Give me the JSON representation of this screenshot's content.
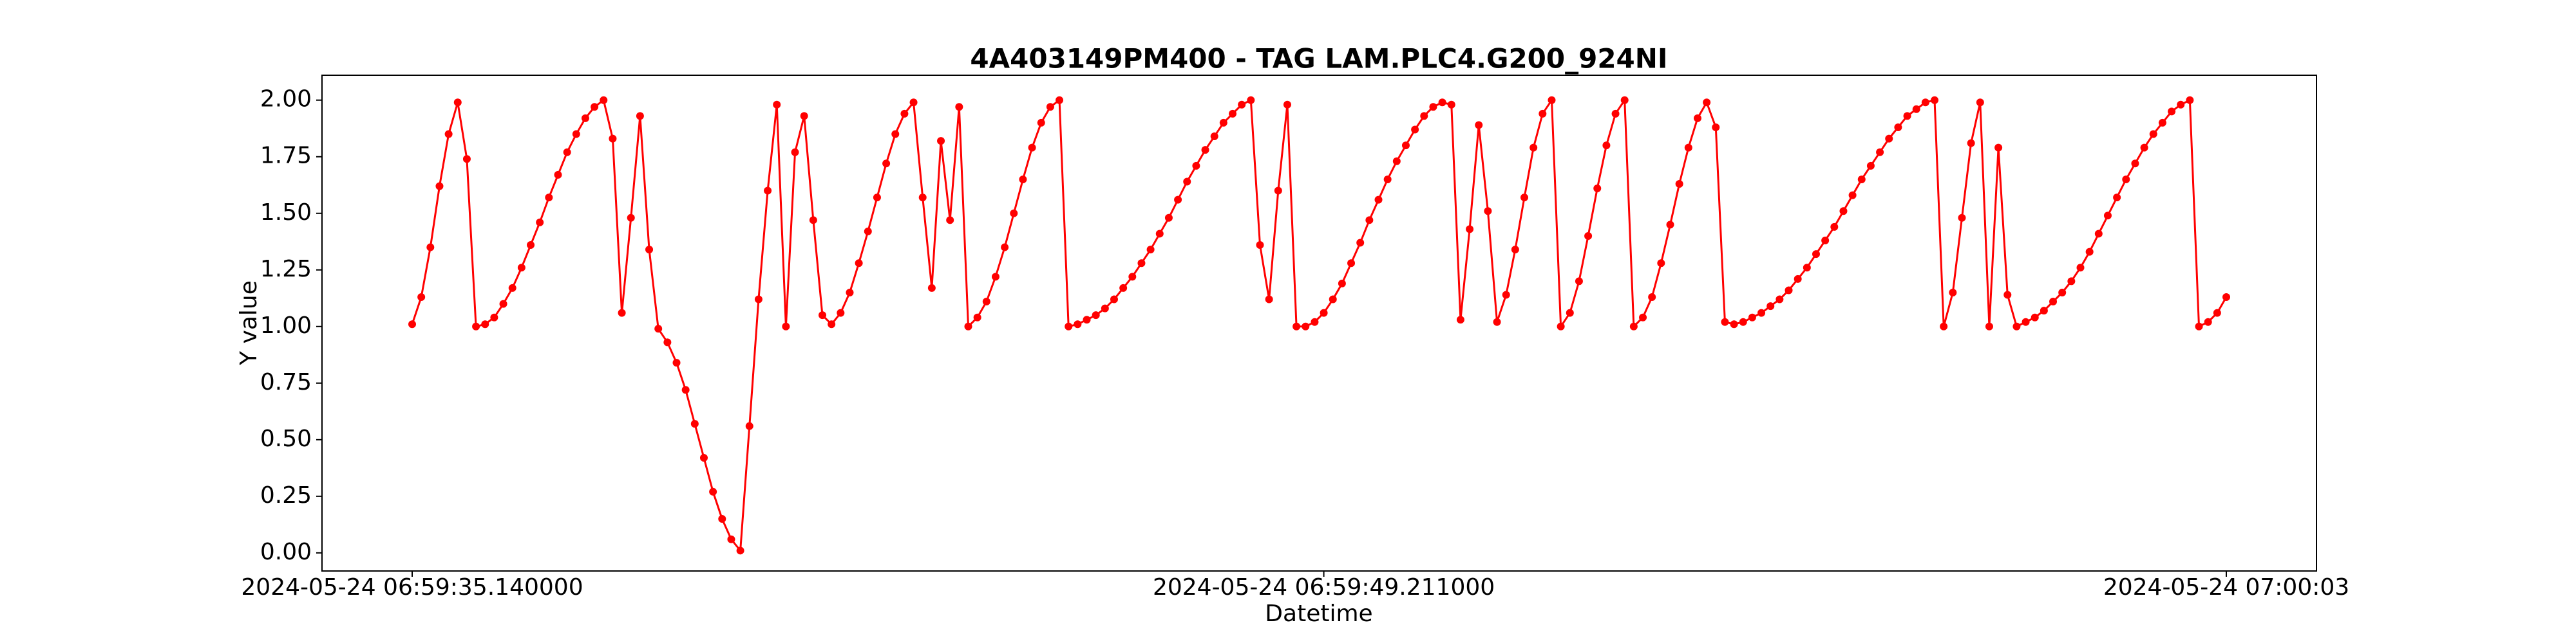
{
  "chart_data": {
    "type": "line",
    "title": "4A403149PM400 - TAG LAM.PLC4.G200_924NI",
    "xlabel": "Datetime",
    "ylabel": "Y value",
    "color": "#ff0000",
    "categories": [
      "2024-05-24 06:59:35.140000",
      null,
      null,
      null,
      null,
      null,
      null,
      null,
      null,
      null,
      null,
      null,
      null,
      null,
      null,
      null,
      null,
      null,
      null,
      null,
      null,
      null,
      null,
      null,
      null,
      null,
      null,
      null,
      null,
      null,
      null,
      null,
      null,
      null,
      null,
      null,
      null,
      null,
      null,
      null,
      null,
      null,
      null,
      null,
      null,
      null,
      null,
      null,
      null,
      null,
      null,
      null,
      null,
      null,
      null,
      null,
      null,
      null,
      null,
      null,
      null,
      null,
      null,
      null,
      null,
      null,
      null,
      null,
      null,
      null,
      null,
      null,
      null,
      null,
      null,
      null,
      null,
      null,
      null,
      null,
      null,
      null,
      null,
      null,
      null,
      null,
      null,
      null,
      null,
      null,
      null,
      null,
      null,
      null,
      null,
      null,
      null,
      null,
      null,
      null,
      "2024-05-24 06:59:49.211000",
      null,
      null,
      null,
      null,
      null,
      null,
      null,
      null,
      null,
      null,
      null,
      null,
      null,
      null,
      null,
      null,
      null,
      null,
      null,
      null,
      null,
      null,
      null,
      null,
      null,
      null,
      null,
      null,
      null,
      null,
      null,
      null,
      null,
      null,
      null,
      null,
      null,
      null,
      null,
      null,
      null,
      null,
      null,
      null,
      null,
      null,
      null,
      null,
      null,
      null,
      null,
      null,
      null,
      null,
      null,
      null,
      null,
      null,
      null,
      null,
      null,
      null,
      null,
      null,
      null,
      null,
      null,
      null,
      null,
      null,
      null,
      null,
      null,
      null,
      null,
      null,
      null,
      null,
      null,
      null,
      null,
      null,
      null,
      null,
      null,
      null,
      null,
      null,
      null,
      null,
      null,
      null,
      null,
      null,
      null,
      null,
      null,
      null,
      "2024-05-24 07:00:03"
    ],
    "values": [
      1.01,
      1.13,
      1.35,
      1.62,
      1.85,
      1.99,
      1.74,
      1.0,
      1.01,
      1.04,
      1.1,
      1.17,
      1.26,
      1.36,
      1.46,
      1.57,
      1.67,
      1.77,
      1.85,
      1.92,
      1.97,
      2.0,
      1.83,
      1.06,
      1.48,
      1.93,
      1.34,
      0.99,
      0.93,
      0.84,
      0.72,
      0.57,
      0.42,
      0.27,
      0.15,
      0.06,
      0.01,
      0.56,
      1.12,
      1.6,
      1.98,
      1.0,
      1.77,
      1.93,
      1.47,
      1.05,
      1.01,
      1.06,
      1.15,
      1.28,
      1.42,
      1.57,
      1.72,
      1.85,
      1.94,
      1.99,
      1.57,
      1.17,
      1.82,
      1.47,
      1.97,
      1.0,
      1.04,
      1.11,
      1.22,
      1.35,
      1.5,
      1.65,
      1.79,
      1.9,
      1.97,
      2.0,
      1.0,
      1.01,
      1.03,
      1.05,
      1.08,
      1.12,
      1.17,
      1.22,
      1.28,
      1.34,
      1.41,
      1.48,
      1.56,
      1.64,
      1.71,
      1.78,
      1.84,
      1.9,
      1.94,
      1.98,
      2.0,
      1.36,
      1.12,
      1.6,
      1.98,
      1.0,
      1.0,
      1.02,
      1.06,
      1.12,
      1.19,
      1.28,
      1.37,
      1.47,
      1.56,
      1.65,
      1.73,
      1.8,
      1.87,
      1.93,
      1.97,
      1.99,
      1.98,
      1.03,
      1.43,
      1.89,
      1.51,
      1.02,
      1.14,
      1.34,
      1.57,
      1.79,
      1.94,
      2.0,
      1.0,
      1.06,
      1.2,
      1.4,
      1.61,
      1.8,
      1.94,
      2.0,
      1.0,
      1.04,
      1.13,
      1.28,
      1.45,
      1.63,
      1.79,
      1.92,
      1.99,
      1.88,
      1.02,
      1.01,
      1.02,
      1.04,
      1.06,
      1.09,
      1.12,
      1.16,
      1.21,
      1.26,
      1.32,
      1.38,
      1.44,
      1.51,
      1.58,
      1.65,
      1.71,
      1.77,
      1.83,
      1.88,
      1.93,
      1.96,
      1.99,
      2.0,
      1.0,
      1.15,
      1.48,
      1.81,
      1.99,
      1.0,
      1.79,
      1.14,
      1.0,
      1.02,
      1.04,
      1.07,
      1.11,
      1.15,
      1.2,
      1.26,
      1.33,
      1.41,
      1.49,
      1.57,
      1.65,
      1.72,
      1.79,
      1.85,
      1.9,
      1.95,
      1.98,
      2.0,
      1.0,
      1.02,
      1.06,
      1.13
    ],
    "ylim": [
      -0.08,
      2.11
    ],
    "yticks": [
      {
        "value": 0,
        "label": "0.00"
      },
      {
        "value": 0.25,
        "label": "0.25"
      },
      {
        "value": 0.5,
        "label": "0.50"
      },
      {
        "value": 0.75,
        "label": "0.75"
      },
      {
        "value": 1,
        "label": "1.00"
      },
      {
        "value": 1.25,
        "label": "1.25"
      },
      {
        "value": 1.5,
        "label": "1.50"
      },
      {
        "value": 1.75,
        "label": "1.75"
      },
      {
        "value": 2,
        "label": "2.00"
      }
    ],
    "grid": false
  }
}
